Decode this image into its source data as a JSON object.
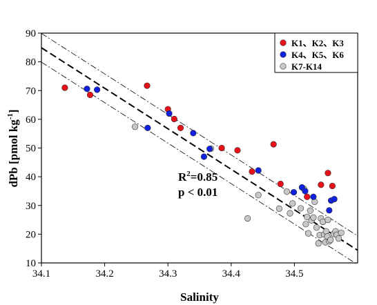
{
  "chart_data": {
    "type": "scatter",
    "xlabel": "Salinity",
    "ylabel": "dPb [pmol kg",
    "ylabel_sup": "-1",
    "ylabel_close": "]",
    "xlim": [
      34.1,
      34.6
    ],
    "ylim": [
      10,
      90
    ],
    "xticks": [
      "34.1",
      "34.2",
      "34.3",
      "34.4",
      "34.5"
    ],
    "yticks": [
      "10",
      "20",
      "30",
      "40",
      "50",
      "60",
      "70",
      "80",
      "90"
    ],
    "annotation": {
      "r2_label": "R",
      "r2_sup": "2",
      "r2_value": "=0.85",
      "p_text": "p < 0.01"
    },
    "legend": {
      "placement": "top-right"
    },
    "regression": {
      "slope": -141,
      "intercept": 4893,
      "ci_offset": 5
    },
    "series": [
      {
        "name": "K1、K2、K3",
        "color": "#e8111a",
        "points": [
          [
            34.137,
            71
          ],
          [
            34.177,
            68.5
          ],
          [
            34.267,
            71.7
          ],
          [
            34.3,
            63.5
          ],
          [
            34.31,
            60.1
          ],
          [
            34.32,
            57
          ],
          [
            34.385,
            50
          ],
          [
            34.41,
            49.2
          ],
          [
            34.433,
            41.8
          ],
          [
            34.467,
            51.3
          ],
          [
            34.478,
            37.5
          ],
          [
            34.52,
            33
          ],
          [
            34.542,
            37.2
          ],
          [
            34.553,
            41.3
          ],
          [
            34.56,
            36.8
          ]
        ]
      },
      {
        "name": "K4、K5、K6",
        "color": "#1020e0",
        "points": [
          [
            34.172,
            70.6
          ],
          [
            34.188,
            70.3
          ],
          [
            34.268,
            57
          ],
          [
            34.302,
            62
          ],
          [
            34.34,
            55.2
          ],
          [
            34.357,
            47
          ],
          [
            34.366,
            49.7
          ],
          [
            34.443,
            42.2
          ],
          [
            34.499,
            34.6
          ],
          [
            34.512,
            36.3
          ],
          [
            34.517,
            35
          ],
          [
            34.53,
            33
          ],
          [
            34.555,
            28.3
          ],
          [
            34.558,
            31.7
          ],
          [
            34.563,
            32.2
          ]
        ]
      },
      {
        "name": "K7-K14",
        "color": "#c8c8c8",
        "points": [
          [
            34.248,
            57.4
          ],
          [
            34.368,
            49.8
          ],
          [
            34.426,
            25.5
          ],
          [
            34.443,
            33.6
          ],
          [
            34.476,
            28.9
          ],
          [
            34.488,
            34.8
          ],
          [
            34.493,
            27.3
          ],
          [
            34.497,
            30.7
          ],
          [
            34.51,
            29
          ],
          [
            34.515,
            35.8
          ],
          [
            34.518,
            23.5
          ],
          [
            34.52,
            26
          ],
          [
            34.522,
            20.3
          ],
          [
            34.525,
            28.2
          ],
          [
            34.527,
            24.8
          ],
          [
            34.53,
            25.8
          ],
          [
            34.532,
            31.3
          ],
          [
            34.535,
            22.3
          ],
          [
            34.538,
            16.8
          ],
          [
            34.54,
            19.7
          ],
          [
            34.542,
            25.5
          ],
          [
            34.545,
            24.3
          ],
          [
            34.547,
            19.9
          ],
          [
            34.549,
            17.2
          ],
          [
            34.55,
            21
          ],
          [
            34.552,
            19.2
          ],
          [
            34.553,
            25
          ],
          [
            34.555,
            17.5
          ],
          [
            34.557,
            18
          ],
          [
            34.562,
            20.1
          ],
          [
            34.565,
            21
          ],
          [
            34.567,
            19.8
          ],
          [
            34.57,
            18.5
          ],
          [
            34.574,
            20.5
          ]
        ]
      }
    ]
  }
}
